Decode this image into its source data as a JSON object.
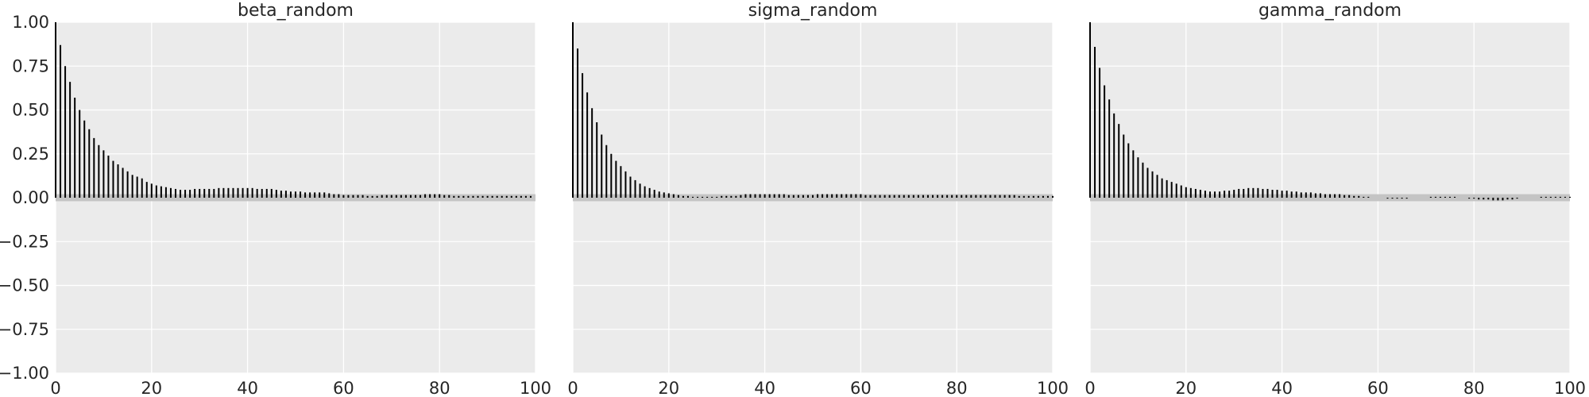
{
  "chart_data": [
    {
      "type": "bar",
      "title": "beta_random",
      "xlim": [
        0,
        100
      ],
      "ylim": [
        -1.0,
        1.0
      ],
      "xticks": [
        "0",
        "20",
        "40",
        "60",
        "80",
        "100"
      ],
      "yticks": [
        "1.00",
        "0.75",
        "0.50",
        "0.25",
        "0.00",
        "−0.25",
        "−0.50",
        "−0.75",
        "−1.00"
      ],
      "grid": true,
      "values": [
        1.0,
        0.87,
        0.75,
        0.66,
        0.57,
        0.5,
        0.44,
        0.39,
        0.34,
        0.3,
        0.27,
        0.24,
        0.21,
        0.19,
        0.17,
        0.15,
        0.13,
        0.12,
        0.11,
        0.09,
        0.08,
        0.07,
        0.065,
        0.06,
        0.055,
        0.05,
        0.045,
        0.045,
        0.045,
        0.05,
        0.05,
        0.05,
        0.05,
        0.05,
        0.055,
        0.055,
        0.055,
        0.055,
        0.055,
        0.055,
        0.055,
        0.055,
        0.05,
        0.05,
        0.05,
        0.05,
        0.045,
        0.04,
        0.04,
        0.035,
        0.035,
        0.035,
        0.03,
        0.03,
        0.03,
        0.03,
        0.03,
        0.025,
        0.02,
        0.02,
        0.015,
        0.015,
        0.015,
        0.015,
        0.015,
        0.01,
        0.01,
        0.01,
        0.015,
        0.015,
        0.015,
        0.015,
        0.015,
        0.015,
        0.015,
        0.015,
        0.015,
        0.02,
        0.02,
        0.02,
        0.02,
        0.015,
        0.015,
        0.01,
        0.01,
        0.01,
        0.01,
        0.01,
        0.01,
        0.01,
        0.01,
        0.01,
        0.01,
        0.01,
        0.01,
        0.01,
        0.01,
        0.01,
        0.01,
        0.01
      ]
    },
    {
      "type": "bar",
      "title": "sigma_random",
      "xlim": [
        0,
        100
      ],
      "ylim": [
        -1.0,
        1.0
      ],
      "xticks": [
        "0",
        "20",
        "40",
        "60",
        "80",
        "100"
      ],
      "yticks": [],
      "grid": true,
      "values": [
        1.0,
        0.85,
        0.71,
        0.6,
        0.51,
        0.43,
        0.36,
        0.3,
        0.25,
        0.21,
        0.18,
        0.15,
        0.12,
        0.1,
        0.08,
        0.065,
        0.055,
        0.045,
        0.035,
        0.03,
        0.025,
        0.02,
        0.015,
        0.01,
        0.01,
        0.005,
        0.005,
        0.005,
        0.005,
        0.005,
        0.005,
        0.01,
        0.01,
        0.01,
        0.01,
        0.015,
        0.02,
        0.02,
        0.02,
        0.02,
        0.02,
        0.02,
        0.02,
        0.02,
        0.02,
        0.015,
        0.015,
        0.015,
        0.015,
        0.015,
        0.015,
        0.02,
        0.02,
        0.02,
        0.02,
        0.02,
        0.02,
        0.02,
        0.02,
        0.02,
        0.02,
        0.015,
        0.015,
        0.015,
        0.015,
        0.015,
        0.015,
        0.015,
        0.015,
        0.015,
        0.015,
        0.015,
        0.015,
        0.015,
        0.015,
        0.015,
        0.015,
        0.015,
        0.015,
        0.015,
        0.015,
        0.015,
        0.015,
        0.015,
        0.015,
        0.015,
        0.015,
        0.015,
        0.015,
        0.015,
        0.015,
        0.015,
        0.015,
        0.01,
        0.01,
        0.01,
        0.01,
        0.01,
        0.01,
        0.01,
        0.01
      ]
    },
    {
      "type": "bar",
      "title": "gamma_random",
      "xlim": [
        0,
        100
      ],
      "ylim": [
        -1.0,
        1.0
      ],
      "xticks": [
        "0",
        "20",
        "40",
        "60",
        "80",
        "100"
      ],
      "yticks": [],
      "grid": true,
      "values": [
        1.0,
        0.86,
        0.74,
        0.64,
        0.56,
        0.48,
        0.42,
        0.36,
        0.31,
        0.27,
        0.23,
        0.2,
        0.17,
        0.15,
        0.13,
        0.11,
        0.1,
        0.09,
        0.08,
        0.07,
        0.06,
        0.055,
        0.05,
        0.045,
        0.04,
        0.035,
        0.035,
        0.035,
        0.04,
        0.04,
        0.045,
        0.05,
        0.05,
        0.055,
        0.055,
        0.055,
        0.05,
        0.05,
        0.045,
        0.045,
        0.04,
        0.04,
        0.035,
        0.035,
        0.03,
        0.03,
        0.03,
        0.025,
        0.025,
        0.02,
        0.02,
        0.02,
        0.02,
        0.015,
        0.015,
        0.01,
        0.01,
        0.005,
        0.005,
        0.0,
        0.0,
        0.0,
        -0.005,
        -0.005,
        -0.005,
        -0.005,
        -0.005,
        0.0,
        0.0,
        0.0,
        0.0,
        0.005,
        0.005,
        0.005,
        0.005,
        0.005,
        0.005,
        0.0,
        0.0,
        -0.005,
        -0.005,
        -0.01,
        -0.01,
        -0.01,
        -0.015,
        -0.015,
        -0.015,
        -0.01,
        -0.01,
        -0.005,
        0.0,
        0.0,
        0.0,
        0.0,
        0.005,
        0.005,
        0.005,
        0.005,
        0.005,
        0.005,
        0.005
      ]
    }
  ]
}
